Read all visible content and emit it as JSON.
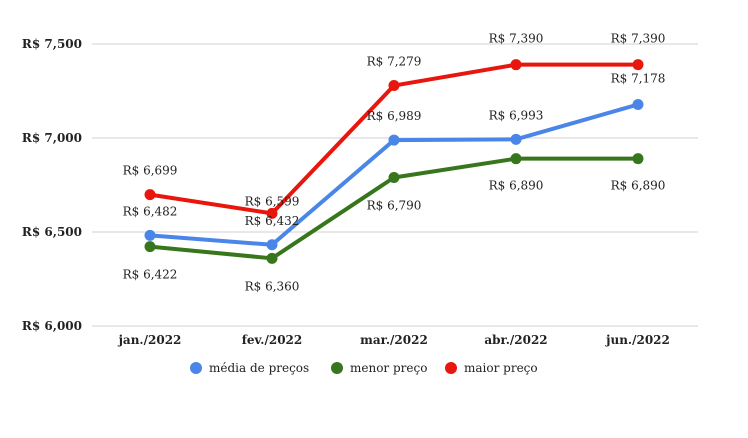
{
  "chart_data": {
    "type": "line",
    "categories": [
      "jan./2022",
      "fev./2022",
      "mar./2022",
      "abr./2022",
      "jun./2022"
    ],
    "y_ticks": [
      "R$ 6,000",
      "R$ 6,500",
      "R$ 7,000",
      "R$ 7,500"
    ],
    "y_tick_values": [
      6000,
      6500,
      7000,
      7500
    ],
    "ylim": [
      6000,
      7600
    ],
    "grid": true,
    "legend_position": "bottom",
    "series": [
      {
        "name": "média de preços",
        "color": "#4a86e8",
        "values": [
          6482,
          6432,
          6989,
          6993,
          7178
        ],
        "labels": [
          "R$ 6,482",
          "R$ 6,432",
          "R$ 6,989",
          "R$ 6,993",
          "R$ 7,178"
        ]
      },
      {
        "name": "menor preço",
        "color": "#38761d",
        "values": [
          6422,
          6360,
          6790,
          6890,
          6890
        ],
        "labels": [
          "R$ 6,422",
          "R$ 6,360",
          "R$ 6,790",
          "R$ 6,890",
          "R$ 6,890"
        ]
      },
      {
        "name": "maior preço",
        "color": "#e8160c",
        "values": [
          6699,
          6599,
          7279,
          7390,
          7390
        ],
        "labels": [
          "R$ 6,699",
          "R$ 6,599",
          "R$ 7,279",
          "R$ 7,390",
          "R$ 7,390"
        ]
      }
    ]
  }
}
